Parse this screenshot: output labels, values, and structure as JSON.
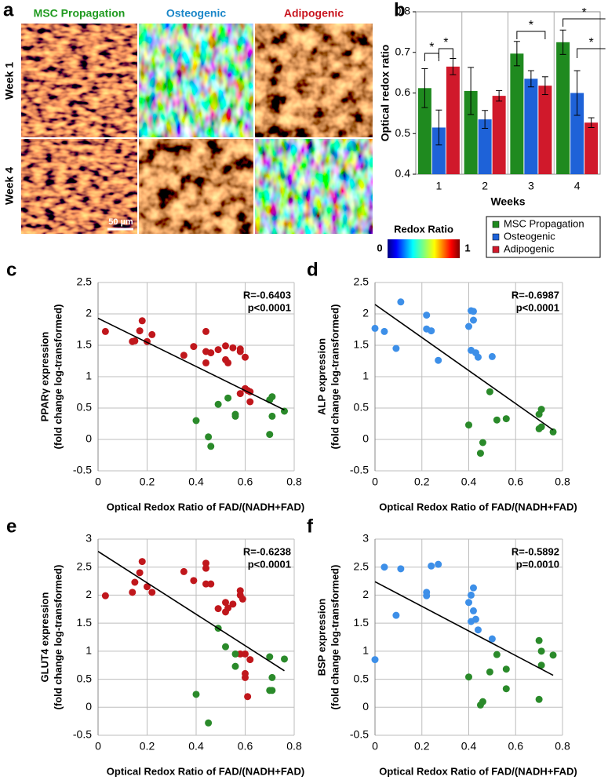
{
  "image_panel": {
    "panel": "a",
    "columns": [
      "MSC Propagation",
      "Osteogenic",
      "Adipogenic"
    ],
    "rows": [
      "Week 1",
      "Week 4"
    ],
    "scale_bar": "50 µm",
    "colorbar": {
      "title": "Redox Ratio",
      "ticks": [
        0,
        1
      ]
    }
  },
  "chart_data": [
    {
      "type": "bar",
      "panel": "b",
      "ylabel": "Optical redox ratio",
      "xlabel": "Weeks",
      "categories": [
        "1",
        "2",
        "3",
        "4"
      ],
      "ylim": [
        0.4,
        0.8
      ],
      "yticks": [
        0.4,
        0.5,
        0.6,
        0.7,
        0.8
      ],
      "series": [
        {
          "name": "MSC Propagation",
          "color": "#1f8a1f",
          "values": [
            0.612,
            0.605,
            0.697,
            0.725
          ],
          "errors": [
            0.048,
            0.058,
            0.03,
            0.03
          ]
        },
        {
          "name": "Osteogenic",
          "color": "#1e62d8",
          "values": [
            0.515,
            0.535,
            0.635,
            0.6
          ],
          "errors": [
            0.043,
            0.022,
            0.02,
            0.055
          ]
        },
        {
          "name": "Adipogenic",
          "color": "#d0192b",
          "values": [
            0.665,
            0.593,
            0.618,
            0.527
          ],
          "errors": [
            0.02,
            0.013,
            0.022,
            0.012
          ]
        }
      ],
      "annotations": [
        "*",
        "*",
        "*",
        "*",
        "*"
      ]
    },
    {
      "type": "scatter",
      "panel": "c",
      "ylabel": [
        "PPARγ expression",
        "(fold change log-transformed)"
      ],
      "xlabel": "Optical Redox Ratio of FAD/(NADH+FAD)",
      "xlim": [
        0,
        0.8
      ],
      "xticks": [
        0,
        0.2,
        0.4,
        0.6,
        0.8
      ],
      "ylim": [
        -0.5,
        2.5
      ],
      "yticks": [
        -0.5,
        0,
        0.5,
        1,
        1.5,
        2,
        2.5
      ],
      "grid": true,
      "annotations": [
        "R=-0.6403",
        "p<0.0001"
      ],
      "fit": {
        "x": [
          0,
          0.76
        ],
        "y": [
          1.93,
          0.47
        ]
      },
      "series": [
        {
          "color": "#c0171c",
          "x": [
            0.03,
            0.14,
            0.15,
            0.17,
            0.18,
            0.2,
            0.22,
            0.35,
            0.39,
            0.44,
            0.44,
            0.44,
            0.46,
            0.49,
            0.52,
            0.52,
            0.53,
            0.55,
            0.58,
            0.58,
            0.58,
            0.6,
            0.6,
            0.61,
            0.62,
            0.62
          ],
          "values": [
            1.72,
            1.56,
            1.57,
            1.73,
            1.89,
            1.56,
            1.67,
            1.34,
            1.48,
            1.72,
            1.22,
            1.4,
            1.38,
            1.43,
            1.49,
            1.27,
            1.22,
            1.46,
            1.44,
            1.4,
            0.73,
            1.31,
            0.81,
            0.78,
            0.76,
            0.6
          ]
        },
        {
          "color": "#2a8a2a",
          "x": [
            0.4,
            0.45,
            0.46,
            0.49,
            0.53,
            0.56,
            0.56,
            0.7,
            0.7,
            0.71,
            0.71,
            0.76
          ],
          "values": [
            0.3,
            0.04,
            -0.11,
            0.56,
            0.66,
            0.37,
            0.4,
            0.08,
            0.63,
            0.68,
            0.37,
            0.45
          ]
        }
      ]
    },
    {
      "type": "scatter",
      "panel": "d",
      "ylabel": [
        "ALP expression",
        "(fold change log-transformed)"
      ],
      "xlabel": "Optical Redox Ratio of FAD/(NADH+FAD)",
      "xlim": [
        0,
        0.8
      ],
      "xticks": [
        0,
        0.2,
        0.4,
        0.6,
        0.8
      ],
      "ylim": [
        -0.5,
        2.5
      ],
      "yticks": [
        -0.5,
        0,
        0.5,
        1,
        1.5,
        2,
        2.5
      ],
      "grid": true,
      "annotations": [
        "R=-0.6987",
        "p<0.0001"
      ],
      "fit": {
        "x": [
          0,
          0.76
        ],
        "y": [
          2.15,
          0.15
        ]
      },
      "series": [
        {
          "color": "#3d8fe8",
          "x": [
            0,
            0.04,
            0.09,
            0.11,
            0.22,
            0.22,
            0.24,
            0.27,
            0.4,
            0.41,
            0.41,
            0.42,
            0.42,
            0.43,
            0.44,
            0.5
          ],
          "values": [
            1.77,
            1.72,
            1.45,
            2.19,
            1.98,
            1.76,
            1.73,
            1.26,
            1.8,
            2.05,
            1.42,
            2.04,
            1.9,
            1.38,
            1.31,
            1.32
          ]
        },
        {
          "color": "#2a8a2a",
          "x": [
            0.4,
            0.45,
            0.46,
            0.49,
            0.52,
            0.56,
            0.7,
            0.7,
            0.71,
            0.71,
            0.76
          ],
          "values": [
            0.23,
            -0.22,
            -0.05,
            0.76,
            0.31,
            0.33,
            0.17,
            0.4,
            0.48,
            0.2,
            0.12
          ]
        }
      ]
    },
    {
      "type": "scatter",
      "panel": "e",
      "ylabel": [
        "GLUT4 expression",
        "(fold change log-transformed)"
      ],
      "xlabel": "Optical Redox Ratio of FAD/(NADH+FAD)",
      "xlim": [
        0,
        0.8
      ],
      "xticks": [
        0,
        0.2,
        0.4,
        0.6,
        0.8
      ],
      "ylim": [
        -0.5,
        3
      ],
      "yticks": [
        -0.5,
        0,
        0.5,
        1,
        1.5,
        2,
        2.5,
        3
      ],
      "grid": true,
      "annotations": [
        "R=-0.6238",
        "p<0.0001"
      ],
      "fit": {
        "x": [
          0,
          0.76
        ],
        "y": [
          2.78,
          0.65
        ]
      },
      "series": [
        {
          "color": "#c0171c",
          "x": [
            0.03,
            0.14,
            0.15,
            0.17,
            0.18,
            0.2,
            0.22,
            0.35,
            0.39,
            0.44,
            0.44,
            0.44,
            0.46,
            0.49,
            0.52,
            0.52,
            0.53,
            0.55,
            0.58,
            0.58,
            0.58,
            0.59,
            0.6,
            0.6,
            0.61,
            0.62,
            0.6
          ],
          "values": [
            1.99,
            2.05,
            2.23,
            2.4,
            2.6,
            2.15,
            2.05,
            2.42,
            2.26,
            2.57,
            2.2,
            2.48,
            2.2,
            1.76,
            1.7,
            1.87,
            1.77,
            1.84,
            2.08,
            2.0,
            0.95,
            1.93,
            0.53,
            0.6,
            0.19,
            0.85,
            0.95
          ]
        },
        {
          "color": "#2a8a2a",
          "x": [
            0.4,
            0.45,
            0.49,
            0.52,
            0.56,
            0.56,
            0.7,
            0.7,
            0.71,
            0.71,
            0.76
          ],
          "values": [
            0.23,
            -0.28,
            1.41,
            1.08,
            0.95,
            0.73,
            0.9,
            0.3,
            0.53,
            0.3,
            0.86
          ]
        }
      ]
    },
    {
      "type": "scatter",
      "panel": "f",
      "ylabel": [
        "BSP expression",
        "(fold change log-transformed)"
      ],
      "xlabel": "Optical Redox Ratio of FAD/(NADH+FAD)",
      "xlim": [
        0,
        0.8
      ],
      "xticks": [
        0,
        0.2,
        0.4,
        0.6,
        0.8
      ],
      "ylim": [
        -0.5,
        3
      ],
      "yticks": [
        -0.5,
        0,
        0.5,
        1,
        1.5,
        2,
        2.5,
        3
      ],
      "grid": true,
      "annotations": [
        "R=-0.5892",
        "p=0.0010"
      ],
      "fit": {
        "x": [
          0,
          0.76
        ],
        "y": [
          2.24,
          0.57
        ]
      },
      "series": [
        {
          "color": "#3d8fe8",
          "x": [
            0,
            0.04,
            0.09,
            0.11,
            0.22,
            0.22,
            0.24,
            0.27,
            0.4,
            0.41,
            0.41,
            0.42,
            0.42,
            0.43,
            0.44,
            0.5
          ],
          "values": [
            0.85,
            2.5,
            1.64,
            2.47,
            2.05,
            1.99,
            2.52,
            2.55,
            1.87,
            1.53,
            2.0,
            1.72,
            2.13,
            1.57,
            1.38,
            1.22
          ]
        },
        {
          "color": "#2a8a2a",
          "x": [
            0.4,
            0.45,
            0.46,
            0.49,
            0.52,
            0.56,
            0.56,
            0.7,
            0.7,
            0.71,
            0.71,
            0.76
          ],
          "values": [
            0.54,
            0.04,
            0.1,
            0.63,
            0.94,
            0.68,
            0.33,
            0.14,
            1.19,
            0.75,
            1.0,
            0.93
          ]
        }
      ]
    }
  ]
}
